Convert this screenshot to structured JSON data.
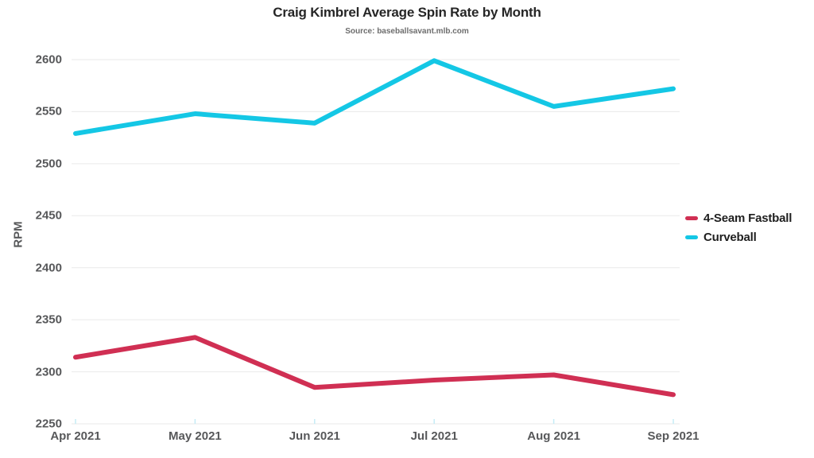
{
  "header": {
    "title": "Craig Kimbrel Average Spin Rate by Month",
    "subtitle": "Source: baseballsavant.mlb.com"
  },
  "colors": {
    "fastball": "#d02f53",
    "curveball": "#14c7e5",
    "gridline": "#e9e9e9",
    "tick_text": "#57585a",
    "x_tick_mark": "#c5ecf6",
    "title_text": "#262626",
    "legend_text": "#1f1f1f",
    "background": "#ffffff"
  },
  "chart_data": {
    "type": "line",
    "title": "Craig Kimbrel Average Spin Rate by Month",
    "subtitle": "Source: baseballsavant.mlb.com",
    "x": [
      "Apr 2021",
      "May 2021",
      "Jun 2021",
      "Jul 2021",
      "Aug 2021",
      "Sep 2021"
    ],
    "series": [
      {
        "name": "4-Seam Fastball",
        "color": "#d02f53",
        "values": [
          2314,
          2333,
          2285,
          2292,
          2297,
          2278
        ]
      },
      {
        "name": "Curveball",
        "color": "#14c7e5",
        "values": [
          2529,
          2548,
          2539,
          2599,
          2555,
          2572
        ]
      }
    ],
    "xlabel": "",
    "ylabel": "RPM",
    "ylim": [
      2250,
      2600
    ],
    "yticks": [
      2250,
      2300,
      2350,
      2400,
      2450,
      2500,
      2550,
      2600
    ],
    "grid": true,
    "legend_position": "right"
  }
}
